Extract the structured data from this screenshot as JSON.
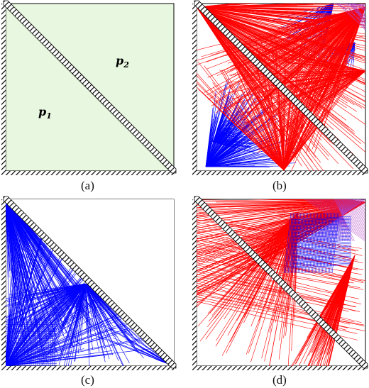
{
  "panels": [
    {
      "id": "a",
      "caption": "(a)",
      "labels": [
        {
          "text": "p",
          "sub": "1"
        },
        {
          "text": "p",
          "sub": "2"
        }
      ]
    },
    {
      "id": "b",
      "caption": "(b)"
    },
    {
      "id": "c",
      "caption": "(c)"
    },
    {
      "id": "d",
      "caption": "(d)"
    }
  ],
  "colors": {
    "fill_a": "#e8f8e0",
    "red": "#ff0000",
    "blue": "#0000ff",
    "purple": "#b040c0",
    "frame": "#000000"
  }
}
